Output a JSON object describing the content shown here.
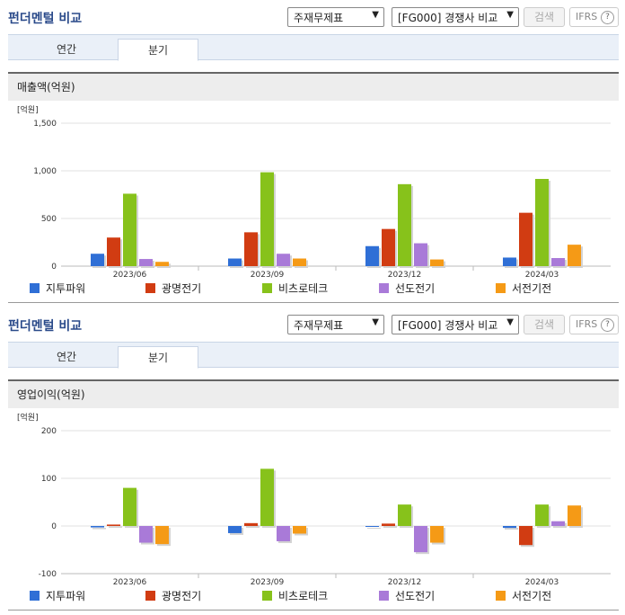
{
  "sections": [
    {
      "title": "펀더멘털 비교",
      "statement_select": "주재무제표",
      "peer_select": "[FG000] 경쟁사 비교",
      "search_label": "검색",
      "ifrs_label": "IFRS",
      "help_glyph": "?",
      "tabs": [
        "연간",
        "분기"
      ],
      "active_tab": 1,
      "subheading": "매출액(억원)"
    },
    {
      "title": "펀더멘털 비교",
      "statement_select": "주재무제표",
      "peer_select": "[FG000] 경쟁사 비교",
      "search_label": "검색",
      "ifrs_label": "IFRS",
      "help_glyph": "?",
      "tabs": [
        "연간",
        "분기"
      ],
      "active_tab": 1,
      "subheading": "영업이익(억원)"
    }
  ],
  "colors": {
    "series": [
      "#2f6fd6",
      "#d13c12",
      "#87c21b",
      "#a97ad8",
      "#f59a16"
    ],
    "title": "#2a4a8a",
    "tabbar": "#eaf0f8"
  },
  "icons": {
    "select_arrow": "chevron-down-icon",
    "ifrs_help": "question-circle-icon"
  },
  "chart_data": [
    {
      "type": "bar",
      "unit_label": "[억원]",
      "categories": [
        "2023/06",
        "2023/09",
        "2023/12",
        "2024/03"
      ],
      "ylim": [
        0,
        1500
      ],
      "yticks": [
        0,
        500,
        1000,
        1500
      ],
      "ytick_labels": [
        "0",
        "500",
        "1,000",
        "1,500"
      ],
      "grid": true,
      "legend_position": "bottom",
      "series": [
        {
          "name": "지투파워",
          "values": [
            130,
            80,
            210,
            90
          ]
        },
        {
          "name": "광명전기",
          "values": [
            300,
            355,
            390,
            560
          ]
        },
        {
          "name": "비츠로테크",
          "values": [
            760,
            985,
            860,
            915
          ]
        },
        {
          "name": "선도전기",
          "values": [
            75,
            130,
            240,
            85
          ]
        },
        {
          "name": "서전기전",
          "values": [
            45,
            80,
            70,
            225
          ]
        }
      ]
    },
    {
      "type": "bar",
      "unit_label": "[억원]",
      "categories": [
        "2023/06",
        "2023/09",
        "2023/12",
        "2024/03"
      ],
      "ylim": [
        -100,
        200
      ],
      "yticks": [
        -100,
        0,
        100,
        200
      ],
      "ytick_labels": [
        "-100",
        "0",
        "100",
        "200"
      ],
      "grid": true,
      "legend_position": "bottom",
      "series": [
        {
          "name": "지투파워",
          "values": [
            -3,
            -15,
            -1,
            -4
          ]
        },
        {
          "name": "광명전기",
          "values": [
            3,
            6,
            5,
            -40
          ]
        },
        {
          "name": "비츠로테크",
          "values": [
            80,
            120,
            45,
            45
          ]
        },
        {
          "name": "선도전기",
          "values": [
            -35,
            -32,
            -55,
            10
          ]
        },
        {
          "name": "서전기전",
          "values": [
            -38,
            -16,
            -35,
            43
          ]
        }
      ]
    }
  ]
}
